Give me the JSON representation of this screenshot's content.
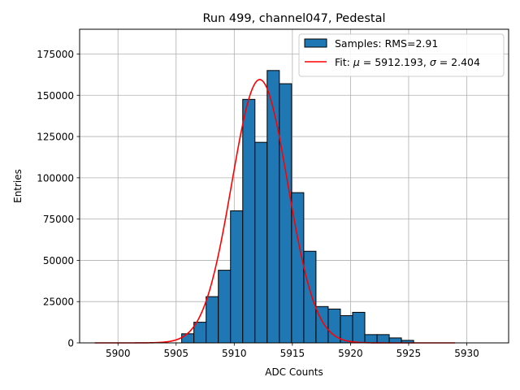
{
  "chart_data": {
    "type": "bar",
    "title": "Run 499, channel047, Pedestal",
    "xlabel": "ADC Counts",
    "ylabel": "Entries",
    "xlim": [
      5896.7,
      5933.6
    ],
    "ylim": [
      0,
      190000
    ],
    "grid": true,
    "legend_position": "top-right",
    "xticks": [
      5900,
      5905,
      5910,
      5915,
      5920,
      5925,
      5930
    ],
    "yticks": [
      0,
      25000,
      50000,
      75000,
      100000,
      125000,
      150000,
      175000
    ],
    "colors": {
      "bars": "#1f77b4",
      "bar_edge": "#000000",
      "fit": "#ff0000",
      "grid": "#b0b0b0"
    },
    "histogram": {
      "name": "Samples: RMS=2.91",
      "bin_width": 1.05,
      "bins": [
        {
          "x": 5905.48,
          "count": 5500
        },
        {
          "x": 5906.53,
          "count": 12500
        },
        {
          "x": 5907.58,
          "count": 28000
        },
        {
          "x": 5908.63,
          "count": 44000
        },
        {
          "x": 5909.68,
          "count": 80000
        },
        {
          "x": 5910.73,
          "count": 147500
        },
        {
          "x": 5911.78,
          "count": 121500
        },
        {
          "x": 5912.83,
          "count": 165000
        },
        {
          "x": 5913.88,
          "count": 157000
        },
        {
          "x": 5914.93,
          "count": 91000
        },
        {
          "x": 5915.98,
          "count": 55500
        },
        {
          "x": 5917.03,
          "count": 22000
        },
        {
          "x": 5918.08,
          "count": 20500
        },
        {
          "x": 5919.13,
          "count": 16500
        },
        {
          "x": 5920.18,
          "count": 18500
        },
        {
          "x": 5921.23,
          "count": 5000
        },
        {
          "x": 5922.28,
          "count": 5000
        },
        {
          "x": 5923.33,
          "count": 3000
        },
        {
          "x": 5924.38,
          "count": 1500
        }
      ]
    },
    "fit": {
      "name_prefix": "Fit: ",
      "mu_symbol": "μ",
      "mu_text": " = 5912.193, ",
      "sigma_symbol": "σ",
      "sigma_text": " = 2.404",
      "mu": 5912.193,
      "sigma": 2.404,
      "amplitude": 159500,
      "x_range": [
        5898.0,
        5929.0
      ]
    }
  }
}
